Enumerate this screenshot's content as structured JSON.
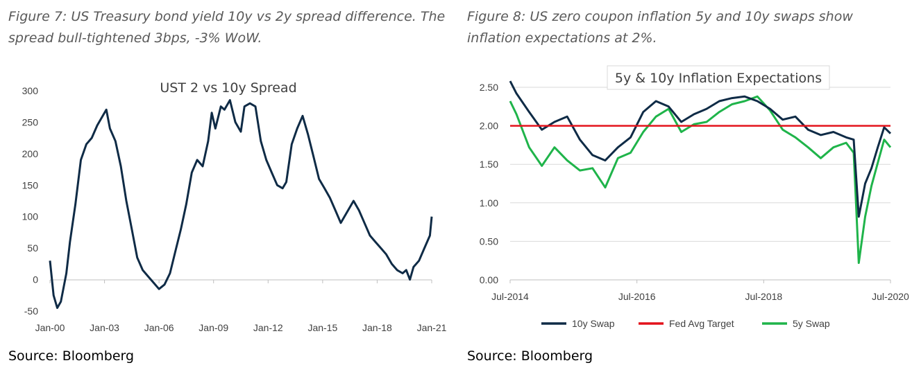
{
  "figure_left": {
    "caption": "Figure 7: US Treasury bond yield 10y vs 2y spread difference. The spread bull-tightened 3bps, -3% WoW.",
    "source": "Source: Bloomberg"
  },
  "figure_right": {
    "caption": "Figure 8: US zero coupon inflation 5y and 10y swaps show inflation expectations at 2%.",
    "source": "Source: Bloomberg"
  },
  "colors": {
    "navy": "#0f2b46",
    "green": "#1fb44a",
    "red": "#e3121b",
    "grid": "#d9d9d9",
    "axis": "#bfbfbf"
  },
  "chart_data": [
    {
      "type": "line",
      "title": "UST 2 vs 10y Spread",
      "xlabel": "",
      "ylabel": "",
      "x_ticks": [
        "Jan-00",
        "Jan-03",
        "Jan-06",
        "Jan-09",
        "Jan-12",
        "Jan-15",
        "Jan-18",
        "Jan-21"
      ],
      "y_ticks": [
        "300",
        "250",
        "200",
        "150",
        "100",
        "50",
        "0",
        "-50"
      ],
      "xlim": [
        2000.0,
        2021.0
      ],
      "ylim": [
        -50,
        300
      ],
      "grid": false,
      "series": [
        {
          "color": "navy",
          "x": [
            2000.0,
            2000.2,
            2000.4,
            2000.6,
            2000.9,
            2001.1,
            2001.4,
            2001.7,
            2002.0,
            2002.3,
            2002.6,
            2002.9,
            2003.1,
            2003.3,
            2003.6,
            2003.9,
            2004.2,
            2004.5,
            2004.8,
            2005.1,
            2005.4,
            2005.7,
            2006.0,
            2006.3,
            2006.6,
            2006.9,
            2007.2,
            2007.5,
            2007.8,
            2008.1,
            2008.4,
            2008.7,
            2008.9,
            2009.1,
            2009.4,
            2009.6,
            2009.9,
            2010.2,
            2010.5,
            2010.7,
            2011.0,
            2011.3,
            2011.6,
            2011.9,
            2012.2,
            2012.5,
            2012.8,
            2013.0,
            2013.3,
            2013.6,
            2013.9,
            2014.2,
            2014.5,
            2014.8,
            2015.1,
            2015.4,
            2015.7,
            2016.0,
            2016.4,
            2016.7,
            2017.0,
            2017.3,
            2017.6,
            2017.9,
            2018.2,
            2018.5,
            2018.8,
            2019.1,
            2019.4,
            2019.6,
            2019.8,
            2020.0,
            2020.3,
            2020.6,
            2020.9,
            2021.0
          ],
          "values": [
            30,
            -25,
            -45,
            -35,
            10,
            60,
            120,
            190,
            215,
            225,
            245,
            260,
            270,
            240,
            220,
            180,
            125,
            80,
            35,
            15,
            5,
            -5,
            -15,
            -8,
            10,
            45,
            80,
            120,
            170,
            190,
            180,
            220,
            265,
            240,
            275,
            270,
            285,
            250,
            235,
            275,
            280,
            275,
            220,
            190,
            170,
            150,
            145,
            155,
            215,
            240,
            260,
            230,
            195,
            160,
            145,
            130,
            110,
            90,
            110,
            125,
            110,
            90,
            70,
            60,
            50,
            40,
            25,
            15,
            10,
            15,
            0,
            20,
            30,
            50,
            70,
            100
          ]
        }
      ]
    },
    {
      "type": "line",
      "title": "5y & 10y  Inflation Expectations",
      "xlabel": "",
      "ylabel": "",
      "x_ticks": [
        "Jul-2014",
        "Jul-2016",
        "Jul-2018",
        "Jul-2020"
      ],
      "y_ticks": [
        "2.50",
        "2.00",
        "1.50",
        "1.00",
        "0.50",
        "0.00"
      ],
      "xlim": [
        2014.5,
        2020.5
      ],
      "ylim": [
        0,
        2.5
      ],
      "grid": true,
      "legend": "bottom",
      "series": [
        {
          "name": "10y Swap",
          "color": "navy",
          "x": [
            2014.5,
            2014.6,
            2014.8,
            2015.0,
            2015.2,
            2015.4,
            2015.6,
            2015.8,
            2016.0,
            2016.2,
            2016.4,
            2016.6,
            2016.8,
            2017.0,
            2017.2,
            2017.4,
            2017.6,
            2017.8,
            2018.0,
            2018.2,
            2018.4,
            2018.6,
            2018.8,
            2019.0,
            2019.2,
            2019.4,
            2019.6,
            2019.8,
            2019.92,
            2020.0,
            2020.1,
            2020.2,
            2020.3,
            2020.4,
            2020.5
          ],
          "values": [
            2.58,
            2.42,
            2.18,
            1.95,
            2.05,
            2.12,
            1.82,
            1.62,
            1.55,
            1.72,
            1.85,
            2.18,
            2.32,
            2.25,
            2.05,
            2.15,
            2.22,
            2.32,
            2.36,
            2.38,
            2.32,
            2.22,
            2.08,
            2.12,
            1.95,
            1.88,
            1.92,
            1.85,
            1.82,
            0.82,
            1.25,
            1.45,
            1.72,
            1.98,
            1.9
          ]
        },
        {
          "name": "Fed Avg Target",
          "color": "red",
          "x": [
            2014.5,
            2020.5
          ],
          "values": [
            2.0,
            2.0
          ]
        },
        {
          "name": "5y Swap",
          "color": "green",
          "x": [
            2014.5,
            2014.6,
            2014.8,
            2015.0,
            2015.2,
            2015.4,
            2015.6,
            2015.8,
            2016.0,
            2016.2,
            2016.4,
            2016.6,
            2016.8,
            2017.0,
            2017.2,
            2017.4,
            2017.6,
            2017.8,
            2018.0,
            2018.2,
            2018.4,
            2018.6,
            2018.8,
            2019.0,
            2019.2,
            2019.4,
            2019.6,
            2019.8,
            2019.92,
            2020.0,
            2020.1,
            2020.2,
            2020.3,
            2020.4,
            2020.5
          ],
          "values": [
            2.32,
            2.15,
            1.72,
            1.48,
            1.72,
            1.55,
            1.42,
            1.45,
            1.2,
            1.58,
            1.65,
            1.92,
            2.12,
            2.22,
            1.92,
            2.02,
            2.05,
            2.18,
            2.28,
            2.32,
            2.38,
            2.2,
            1.95,
            1.85,
            1.72,
            1.58,
            1.72,
            1.78,
            1.65,
            0.22,
            0.82,
            1.22,
            1.52,
            1.82,
            1.72
          ]
        }
      ]
    }
  ]
}
